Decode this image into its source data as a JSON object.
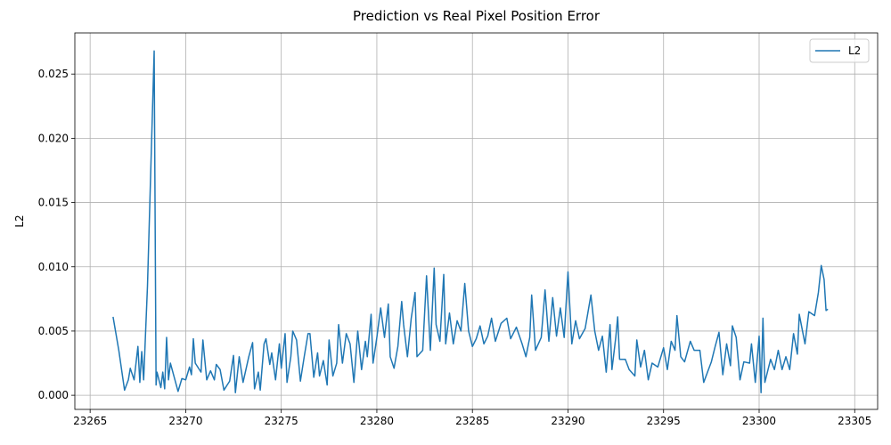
{
  "chart_data": {
    "type": "line",
    "title": "Prediction vs Real Pixel Position Error",
    "y_label": "L2",
    "x": [
      23266.2,
      23266.5,
      23266.8,
      23267.0,
      23267.1,
      23267.3,
      23267.5,
      23267.6,
      23267.7,
      23267.8,
      23268.0,
      23268.35,
      23268.45,
      23268.5,
      23268.7,
      23268.8,
      23268.9,
      23269.0,
      23269.1,
      23269.2,
      23269.4,
      23269.6,
      23269.8,
      23270.0,
      23270.2,
      23270.3,
      23270.4,
      23270.5,
      23270.8,
      23270.9,
      23271.1,
      23271.3,
      23271.5,
      23271.6,
      23271.8,
      23272.0,
      23272.3,
      23272.5,
      23272.6,
      23272.8,
      23273.0,
      23273.3,
      23273.5,
      23273.6,
      23273.8,
      23273.9,
      23274.1,
      23274.2,
      23274.4,
      23274.5,
      23274.7,
      23274.9,
      23275.0,
      23275.2,
      23275.3,
      23275.5,
      23275.6,
      23275.8,
      23276.0,
      23276.2,
      23276.4,
      23276.5,
      23276.7,
      23276.9,
      23277.0,
      23277.2,
      23277.4,
      23277.5,
      23277.7,
      23277.9,
      23278.0,
      23278.2,
      23278.4,
      23278.6,
      23278.8,
      23279.0,
      23279.2,
      23279.4,
      23279.5,
      23279.7,
      23279.8,
      23280.0,
      23280.2,
      23280.4,
      23280.6,
      23280.7,
      23280.9,
      23281.1,
      23281.3,
      23281.4,
      23281.6,
      23281.8,
      23282.0,
      23282.1,
      23282.4,
      23282.6,
      23282.8,
      23283.0,
      23283.1,
      23283.3,
      23283.5,
      23283.6,
      23283.8,
      23284.0,
      23284.2,
      23284.4,
      23284.6,
      23284.8,
      23285.0,
      23285.2,
      23285.4,
      23285.6,
      23285.8,
      23286.0,
      23286.2,
      23286.5,
      23286.8,
      23287.0,
      23287.3,
      23287.6,
      23287.8,
      23288.0,
      23288.1,
      23288.3,
      23288.6,
      23288.8,
      23289.0,
      23289.2,
      23289.4,
      23289.6,
      23289.8,
      23290.0,
      23290.2,
      23290.4,
      23290.6,
      23290.9,
      23291.2,
      23291.4,
      23291.6,
      23291.8,
      23292.0,
      23292.2,
      23292.3,
      23292.5,
      23292.6,
      23292.7,
      23293.0,
      23293.2,
      23293.5,
      23293.6,
      23293.8,
      23294.0,
      23294.2,
      23294.4,
      23294.7,
      23295.0,
      23295.2,
      23295.4,
      23295.6,
      23295.7,
      23295.9,
      23296.1,
      23296.4,
      23296.6,
      23296.9,
      23297.1,
      23297.3,
      23297.5,
      23297.7,
      23297.9,
      23298.1,
      23298.3,
      23298.5,
      23298.6,
      23298.8,
      23299.0,
      23299.2,
      23299.5,
      23299.6,
      23299.8,
      23300.0,
      23300.1,
      23300.2,
      23300.3,
      23300.6,
      23300.8,
      23301.0,
      23301.2,
      23301.4,
      23301.6,
      23301.8,
      23302.0,
      23302.1,
      23302.4,
      23302.6,
      23302.9,
      23303.1,
      23303.25,
      23303.4,
      23303.5,
      23303.6
    ],
    "series": [
      {
        "name": "L2",
        "color": "#1f77b4",
        "values": [
          0.0061,
          0.0035,
          0.0004,
          0.0012,
          0.0021,
          0.0012,
          0.0038,
          0.001,
          0.0034,
          0.0012,
          0.0085,
          0.0268,
          0.0008,
          0.0018,
          0.0006,
          0.0018,
          0.0005,
          0.0045,
          0.0012,
          0.0025,
          0.0014,
          0.0003,
          0.0013,
          0.0012,
          0.0022,
          0.0016,
          0.0044,
          0.0025,
          0.0018,
          0.0043,
          0.0012,
          0.0019,
          0.0012,
          0.0024,
          0.002,
          0.0004,
          0.0011,
          0.0031,
          0.0002,
          0.003,
          0.001,
          0.003,
          0.0041,
          0.0005,
          0.0018,
          0.0004,
          0.004,
          0.0044,
          0.0024,
          0.0033,
          0.0012,
          0.004,
          0.0021,
          0.0048,
          0.001,
          0.003,
          0.005,
          0.0043,
          0.0011,
          0.003,
          0.0048,
          0.0048,
          0.0014,
          0.0033,
          0.0015,
          0.0027,
          0.0008,
          0.0043,
          0.0015,
          0.0025,
          0.0055,
          0.0025,
          0.0048,
          0.004,
          0.001,
          0.005,
          0.002,
          0.0042,
          0.003,
          0.0063,
          0.0025,
          0.0045,
          0.0068,
          0.0045,
          0.0071,
          0.003,
          0.0021,
          0.0038,
          0.0073,
          0.0055,
          0.003,
          0.006,
          0.008,
          0.003,
          0.0035,
          0.0093,
          0.0035,
          0.0099,
          0.0055,
          0.0042,
          0.0094,
          0.004,
          0.0064,
          0.004,
          0.0058,
          0.005,
          0.0087,
          0.005,
          0.0038,
          0.0044,
          0.0054,
          0.004,
          0.0046,
          0.006,
          0.0042,
          0.0056,
          0.006,
          0.0044,
          0.0053,
          0.004,
          0.003,
          0.0045,
          0.0078,
          0.0035,
          0.0045,
          0.0082,
          0.0042,
          0.0076,
          0.0046,
          0.0068,
          0.0045,
          0.0096,
          0.004,
          0.0058,
          0.0044,
          0.0052,
          0.0078,
          0.005,
          0.0035,
          0.0046,
          0.0018,
          0.0055,
          0.002,
          0.0045,
          0.0061,
          0.0028,
          0.0028,
          0.002,
          0.0015,
          0.0043,
          0.0022,
          0.0035,
          0.0012,
          0.0025,
          0.0022,
          0.0037,
          0.002,
          0.0042,
          0.0035,
          0.0062,
          0.003,
          0.0026,
          0.0042,
          0.0035,
          0.0035,
          0.001,
          0.0018,
          0.0026,
          0.0038,
          0.0049,
          0.0016,
          0.004,
          0.0023,
          0.0054,
          0.0045,
          0.0012,
          0.0026,
          0.0025,
          0.004,
          0.001,
          0.0046,
          0.0002,
          0.006,
          0.001,
          0.0028,
          0.002,
          0.0035,
          0.002,
          0.003,
          0.002,
          0.0048,
          0.0032,
          0.0063,
          0.004,
          0.0065,
          0.0062,
          0.008,
          0.0101,
          0.009,
          0.0066,
          0.0067
        ]
      }
    ],
    "xlim": [
      23264.2,
      23306.2
    ],
    "xticks": [
      23265,
      23270,
      23275,
      23280,
      23285,
      23290,
      23295,
      23300,
      23305
    ],
    "ylim": [
      -0.0011,
      0.0282
    ],
    "yticks": [
      {
        "value": 0,
        "label": "0.000"
      },
      {
        "value": 0.005,
        "label": "0.005"
      },
      {
        "value": 0.01,
        "label": "0.010"
      },
      {
        "value": 0.015,
        "label": "0.015"
      },
      {
        "value": 0.02,
        "label": "0.020"
      },
      {
        "value": 0.025,
        "label": "0.025"
      }
    ],
    "grid": true,
    "legend": "upper right"
  }
}
